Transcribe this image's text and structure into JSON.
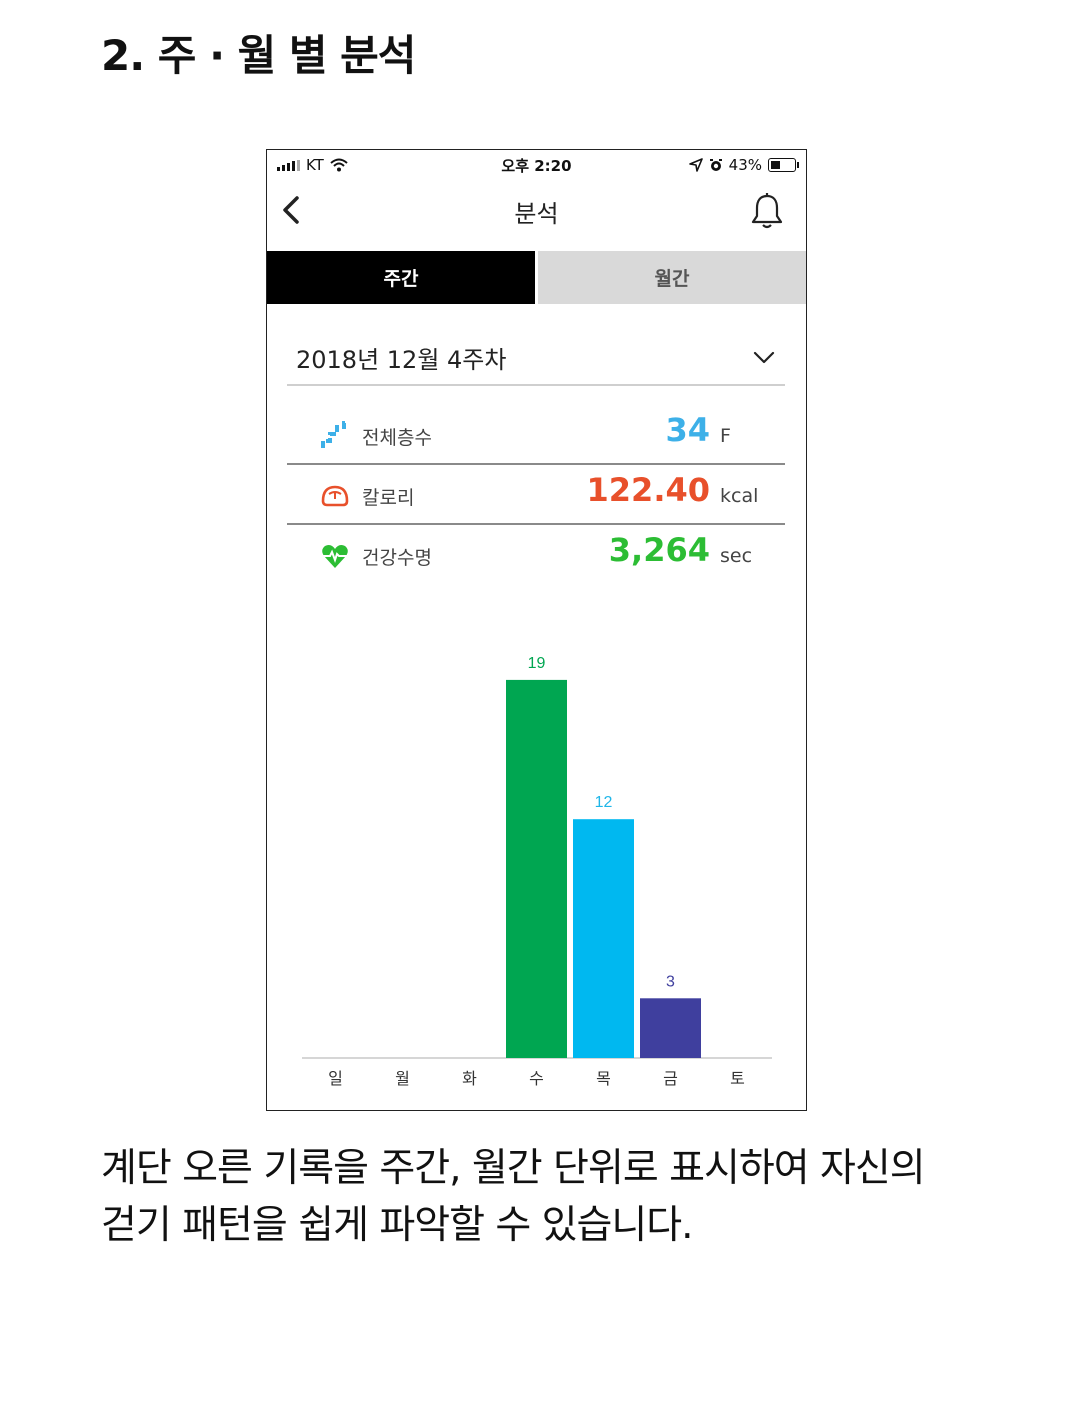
{
  "heading": "2. 주 · 월 별 분석",
  "status_bar": {
    "carrier": "KT",
    "time": "오후 2:20",
    "battery_percent": "43%",
    "battery_level": 0.43
  },
  "nav": {
    "title": "분석",
    "back_icon": "chevron-left-icon",
    "bell_icon": "bell-icon"
  },
  "tabs": [
    {
      "label": "주간",
      "active": true
    },
    {
      "label": "월간",
      "active": false
    }
  ],
  "week_selector": {
    "value": "2018년 12월 4주차",
    "icon": "chevron-down-icon"
  },
  "stats": [
    {
      "label": "전체층수",
      "value": "34",
      "unit": "F",
      "color": "#3db0e8",
      "icon": "stairs-icon"
    },
    {
      "label": "칼로리",
      "value": "122.40",
      "unit": "kcal",
      "color": "#e8502b",
      "icon": "scale-icon"
    },
    {
      "label": "건강수명",
      "value": "3,264",
      "unit": "sec",
      "color": "#2cbd34",
      "icon": "heart-pulse-icon"
    }
  ],
  "chart_data": {
    "type": "bar",
    "categories": [
      "일",
      "월",
      "화",
      "수",
      "목",
      "금",
      "토"
    ],
    "values": [
      0,
      0,
      0,
      19,
      12,
      3,
      0
    ],
    "colors": [
      "#00a651",
      "#00a651",
      "#00a651",
      "#00a651",
      "#00b8f0",
      "#3f3f9e",
      "#00a651"
    ],
    "label_colors": [
      "#00a651",
      "#00a651",
      "#00a651",
      "#00a651",
      "#1fb6e8",
      "#3f3f9e",
      "#00a651"
    ],
    "ylim": [
      0,
      20
    ],
    "title": "",
    "xlabel": "",
    "ylabel": ""
  },
  "caption": {
    "line1": "계단 오른 기록을 주간, 월간 단위로 표시하여 자신의",
    "line2": "걷기 패턴을 쉽게 파악할 수 있습니다."
  }
}
